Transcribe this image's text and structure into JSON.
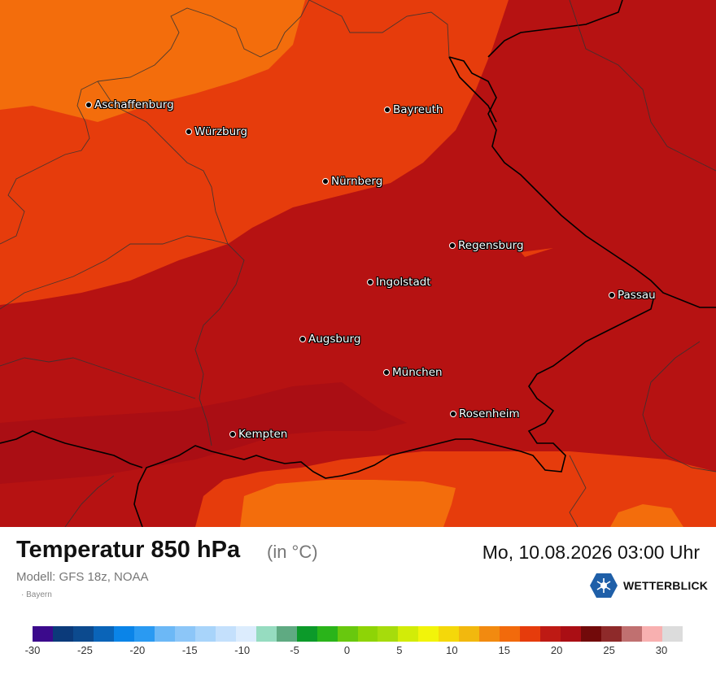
{
  "map": {
    "cities": [
      {
        "name": "Aschaffenburg"
      },
      {
        "name": "Würzburg"
      },
      {
        "name": "Bayreuth"
      },
      {
        "name": "Nürnberg"
      },
      {
        "name": "Regensburg"
      },
      {
        "name": "Ingolstadt"
      },
      {
        "name": "Passau"
      },
      {
        "name": "Augsburg"
      },
      {
        "name": "München"
      },
      {
        "name": "Rosenheim"
      },
      {
        "name": "Kempten"
      }
    ],
    "field_colors": {
      "c15": "#f36d0c",
      "c17": "#e63c0c",
      "c20": "#b61212",
      "c21": "#aa0e14"
    }
  },
  "info": {
    "title": "Temperatur 850 hPa",
    "unit": "(in °C)",
    "datetime": "Mo, 10.08.2026 03:00 Uhr",
    "model": "Modell: GFS 18z, NOAA",
    "region": "Bayern",
    "brand": "WETTERBLICK",
    "brand_color": "#1f5fa8"
  },
  "legend": {
    "colors": [
      "#3b0a8c",
      "#0b3a7a",
      "#0c4a8e",
      "#0a64b8",
      "#0a84e8",
      "#2a9af2",
      "#6cb8f6",
      "#8cc6f8",
      "#a8d4fa",
      "#c4e0fc",
      "#dcecfd",
      "#96dcc0",
      "#5faa82",
      "#0c9a2a",
      "#2ab41a",
      "#68c80e",
      "#8ed406",
      "#a6dc0c",
      "#d2ec08",
      "#f2f40a",
      "#f4d80a",
      "#f2b80e",
      "#f28a10",
      "#f26a0c",
      "#e63c0c",
      "#be1a14",
      "#aa0e14",
      "#720a0a",
      "#8e2a2a",
      "#c07070",
      "#f8b0b0",
      "#dcdcdc"
    ],
    "ticks": [
      "-30",
      "-25",
      "-20",
      "-15",
      "-10",
      "-5",
      "0",
      "5",
      "10",
      "15",
      "20",
      "25",
      "30"
    ]
  }
}
